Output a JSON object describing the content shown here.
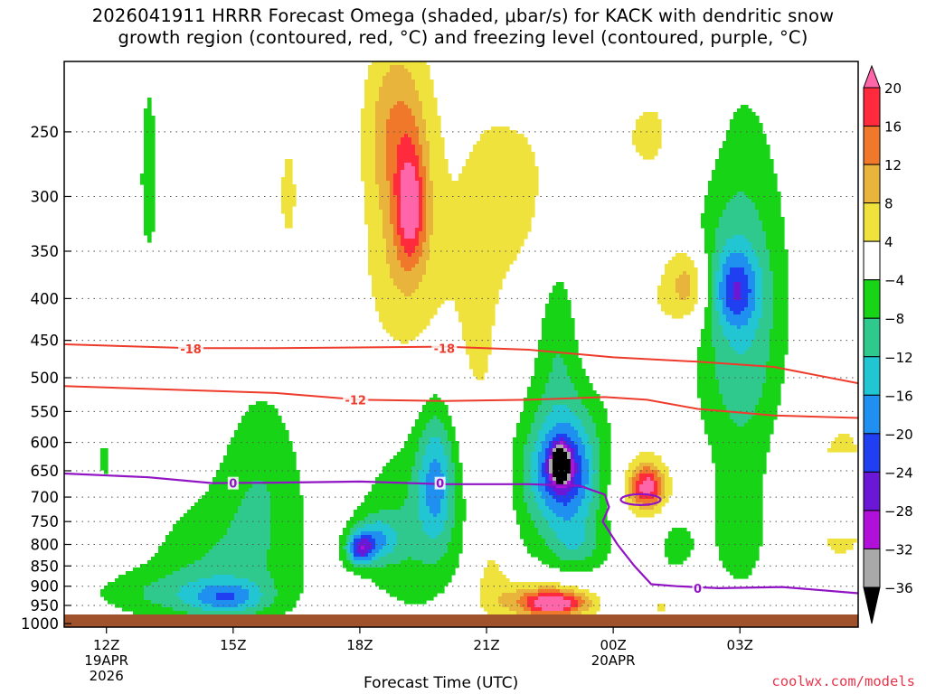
{
  "header": {
    "title_line1": "2026041911 HRRR Forecast Omega (shaded, μbar/s) for KACK with dendritic snow",
    "title_line2": "growth region (contoured, red, °C) and freezing level (contoured, purple, °C)"
  },
  "footer": {
    "xlabel": "Forecast Time (UTC)",
    "credit": "coolwx.com/models"
  },
  "colors": {
    "frame": "#000000",
    "grid": "#555555",
    "ground": "#a0522d",
    "dgz_contour": "#ee3b2b",
    "freezing_contour": "#9013c4"
  },
  "chart_data": {
    "type": "heatmap",
    "y_axis": {
      "label": "",
      "unit": "hPa",
      "scale": "log",
      "range": [
        1010,
        205
      ],
      "ticks": [
        250,
        300,
        350,
        400,
        450,
        500,
        550,
        600,
        650,
        700,
        750,
        800,
        850,
        900,
        950,
        1000
      ]
    },
    "x_axis": {
      "range_hours": [
        -1,
        17.8
      ],
      "ticks": [
        {
          "hour": 0,
          "label": "12Z",
          "sub1": "19APR",
          "sub2": "2026"
        },
        {
          "hour": 3,
          "label": "15Z"
        },
        {
          "hour": 6,
          "label": "18Z"
        },
        {
          "hour": 9,
          "label": "21Z"
        },
        {
          "hour": 12,
          "label": "00Z",
          "sub1": "20APR"
        },
        {
          "hour": 15,
          "label": "03Z"
        }
      ]
    },
    "colorbar": {
      "labels": [
        "20",
        "16",
        "12",
        "8",
        "4",
        "−4",
        "−8",
        "−12",
        "−16",
        "−20",
        "−24",
        "−28",
        "−32",
        "−36"
      ],
      "colors": [
        "#ff66aa",
        "#ff2a3c",
        "#f0782b",
        "#e8b43c",
        "#efe23c",
        "#ffffff",
        "#17d417",
        "#2fc98e",
        "#22c6d2",
        "#1f8ff0",
        "#1f3ff0",
        "#6a17d6",
        "#b010d8",
        "#a9a9a9",
        "#000000"
      ]
    },
    "omega_features": [
      {
        "t": 1.0,
        "p": 285,
        "rt": 0.25,
        "rp": 90,
        "v": -6
      },
      {
        "t": -0.05,
        "p": 630,
        "rt": 0.15,
        "rp": 35,
        "v": -6
      },
      {
        "t": 2.8,
        "p": 860,
        "rt": 1.9,
        "rp": 180,
        "v": -8
      },
      {
        "t": 3.7,
        "p": 650,
        "rt": 1.0,
        "rp": 170,
        "v": -6
      },
      {
        "t": 2.9,
        "p": 930,
        "rt": 0.8,
        "rp": 40,
        "v": -10
      },
      {
        "t": 7.3,
        "p": 760,
        "rt": 1.4,
        "rp": 220,
        "v": -8
      },
      {
        "t": 6.4,
        "p": 790,
        "rt": 0.5,
        "rp": 50,
        "v": -12
      },
      {
        "t": 6.0,
        "p": 810,
        "rt": 0.3,
        "rp": 35,
        "v": -19
      },
      {
        "t": 7.8,
        "p": 660,
        "rt": 0.45,
        "rp": 130,
        "v": -13
      },
      {
        "t": 1.5,
        "p": 920,
        "rt": 2.1,
        "rp": 60,
        "v": -6
      },
      {
        "t": 10.9,
        "p": 670,
        "rt": 1.5,
        "rp": 210,
        "v": -9
      },
      {
        "t": 10.8,
        "p": 650,
        "rt": 0.7,
        "rp": 90,
        "v": -18
      },
      {
        "t": 10.75,
        "p": 640,
        "rt": 0.2,
        "rp": 30,
        "v": -36
      },
      {
        "t": 11.1,
        "p": 800,
        "rt": 0.6,
        "rp": 60,
        "v": -6
      },
      {
        "t": 10.7,
        "p": 430,
        "rt": 0.5,
        "rp": 120,
        "v": -6
      },
      {
        "t": 14.8,
        "p": 400,
        "rt": 1.2,
        "rp": 180,
        "v": -9
      },
      {
        "t": 14.9,
        "p": 390,
        "rt": 0.5,
        "rp": 40,
        "v": -13
      },
      {
        "t": 15.2,
        "p": 460,
        "rt": 1.0,
        "rp": 200,
        "v": -5
      },
      {
        "t": 13.5,
        "p": 800,
        "rt": 0.5,
        "rp": 70,
        "v": -6
      },
      {
        "t": 15.0,
        "p": 770,
        "rt": 0.7,
        "rp": 150,
        "v": -7
      },
      {
        "t": 6.8,
        "p": 245,
        "rt": 0.7,
        "rp": 55,
        "v": 7
      },
      {
        "t": 7.0,
        "p": 320,
        "rt": 0.8,
        "rp": 120,
        "v": 7
      },
      {
        "t": 7.2,
        "p": 310,
        "rt": 0.35,
        "rp": 50,
        "v": 15
      },
      {
        "t": 7.6,
        "p": 420,
        "rt": 1.8,
        "rp": 200,
        "v": 3.5
      },
      {
        "t": 8.9,
        "p": 500,
        "rt": 0.6,
        "rp": 200,
        "v": 3.5
      },
      {
        "t": 4.3,
        "p": 300,
        "rt": 0.4,
        "rp": 90,
        "v": 4.5
      },
      {
        "t": 9.8,
        "p": 300,
        "rt": 1.3,
        "rp": 90,
        "v": 4.8
      },
      {
        "t": 13.1,
        "p": 250,
        "rt": 1.6,
        "rp": 60,
        "v": 4.5
      },
      {
        "t": 12.8,
        "p": 420,
        "rt": 1.8,
        "rp": 100,
        "v": 4.5
      },
      {
        "t": 13.8,
        "p": 385,
        "rt": 0.5,
        "rp": 40,
        "v": 11
      },
      {
        "t": 9.1,
        "p": 840,
        "rt": 0.5,
        "rp": 160,
        "v": 6
      },
      {
        "t": 10.3,
        "p": 930,
        "rt": 1.3,
        "rp": 60,
        "v": 8
      },
      {
        "t": 10.6,
        "p": 945,
        "rt": 0.8,
        "rp": 35,
        "v": 20
      },
      {
        "t": 12.6,
        "p": 680,
        "rt": 0.8,
        "rp": 100,
        "v": 7
      },
      {
        "t": 12.8,
        "p": 680,
        "rt": 0.4,
        "rp": 40,
        "v": 18
      },
      {
        "t": 17.4,
        "p": 700,
        "rt": 1.2,
        "rp": 250,
        "v": 5
      },
      {
        "t": 13.1,
        "p": 955,
        "rt": 0.3,
        "rp": 15,
        "v": 5
      }
    ],
    "dgz_contours": [
      {
        "label": "-18",
        "points": [
          [
            -1,
            455
          ],
          [
            2,
            460
          ],
          [
            4,
            460
          ],
          [
            8,
            458
          ],
          [
            10,
            462
          ],
          [
            12,
            472
          ],
          [
            14,
            478
          ],
          [
            15.8,
            485
          ],
          [
            17.8,
            508
          ]
        ]
      },
      {
        "label": "-12",
        "points": [
          [
            -1,
            512
          ],
          [
            2,
            518
          ],
          [
            4,
            522
          ],
          [
            6,
            532
          ],
          [
            8,
            534
          ],
          [
            10,
            532
          ],
          [
            11.8,
            528
          ],
          [
            12.8,
            532
          ],
          [
            14,
            546
          ],
          [
            15.8,
            556
          ],
          [
            17.8,
            560
          ]
        ]
      }
    ],
    "freezing_contour": {
      "label": "0",
      "points": [
        [
          -1,
          655
        ],
        [
          1,
          662
        ],
        [
          2.5,
          673
        ],
        [
          4,
          672
        ],
        [
          6,
          670
        ],
        [
          8,
          675
        ],
        [
          10,
          675
        ],
        [
          11.2,
          678
        ],
        [
          11.8,
          695
        ],
        [
          11.9,
          720
        ],
        [
          11.75,
          750
        ],
        [
          12.1,
          800
        ],
        [
          12.5,
          850
        ],
        [
          12.9,
          895
        ],
        [
          13.5,
          900
        ],
        [
          14.5,
          905
        ],
        [
          16,
          902
        ],
        [
          17.8,
          918
        ]
      ]
    },
    "contour_labels": [
      {
        "text": "-18",
        "t": 2.0,
        "p": 461
      },
      {
        "text": "-18",
        "t": 8.0,
        "p": 460
      },
      {
        "text": "-12",
        "t": 5.9,
        "p": 532
      },
      {
        "text": "0",
        "t": 3.0,
        "p": 673
      },
      {
        "text": "0",
        "t": 7.9,
        "p": 673
      },
      {
        "text": "0",
        "t": 14.0,
        "p": 905
      }
    ]
  }
}
